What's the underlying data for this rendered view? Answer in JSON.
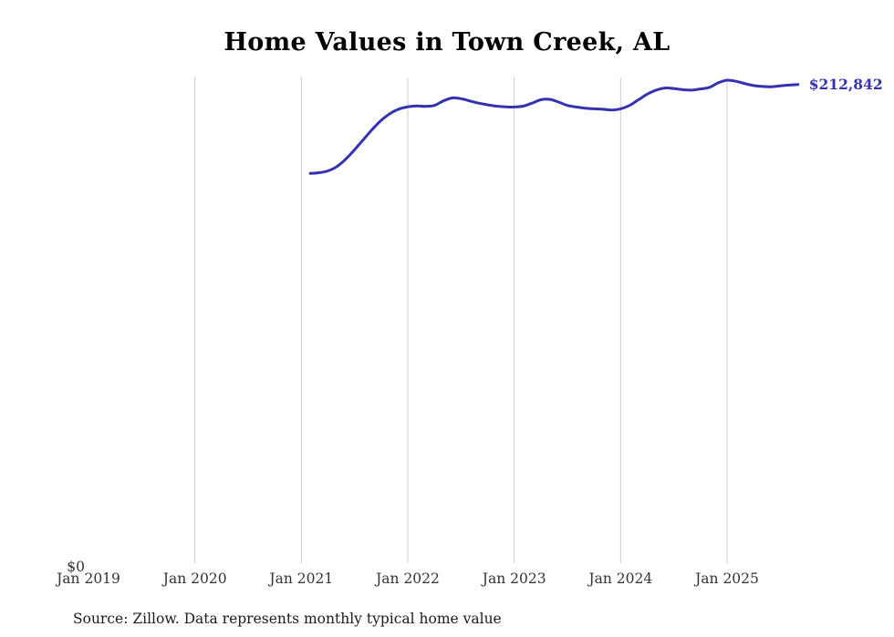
{
  "page": {
    "source_note": "Source: Zillow. Data represents monthly typical home value"
  },
  "chart_data": {
    "type": "line",
    "title": "Home Values in Town Creek, AL",
    "xlabel": "",
    "ylabel": "",
    "x_tick_labels": [
      "Jan 2019",
      "Jan 2020",
      "Jan 2021",
      "Jan 2022",
      "Jan 2023",
      "Jan 2024",
      "Jan 2025"
    ],
    "y_tick_labels": [
      "$0"
    ],
    "ylim": [
      0,
      216000
    ],
    "grid": "vertical",
    "legend": "none",
    "line_color": "#3432b0",
    "grid_color": "#cccccc",
    "tick_color": "#333333",
    "end_label": "$212,842",
    "end_value": 212842,
    "series": [
      {
        "name": "Monthly typical home value",
        "x": [
          "2021-02",
          "2021-03",
          "2021-04",
          "2021-05",
          "2021-06",
          "2021-07",
          "2021-08",
          "2021-09",
          "2021-10",
          "2021-11",
          "2021-12",
          "2022-01",
          "2022-02",
          "2022-03",
          "2022-04",
          "2022-05",
          "2022-06",
          "2022-07",
          "2022-08",
          "2022-09",
          "2022-10",
          "2022-11",
          "2022-12",
          "2023-01",
          "2023-02",
          "2023-03",
          "2023-04",
          "2023-05",
          "2023-06",
          "2023-07",
          "2023-08",
          "2023-09",
          "2023-10",
          "2023-11",
          "2023-12",
          "2024-01",
          "2024-02",
          "2024-03",
          "2024-04",
          "2024-05",
          "2024-06",
          "2024-07",
          "2024-08",
          "2024-09",
          "2024-10",
          "2024-11",
          "2024-12",
          "2025-01",
          "2025-02",
          "2025-03",
          "2025-04",
          "2025-05",
          "2025-06",
          "2025-07",
          "2025-08",
          "2025-09"
        ],
        "values": [
          173500,
          173800,
          174600,
          176500,
          179800,
          184000,
          188500,
          193000,
          197000,
          200000,
          202000,
          203000,
          203400,
          203200,
          203600,
          205600,
          206900,
          206600,
          205600,
          204600,
          203900,
          203300,
          203000,
          202900,
          203300,
          204600,
          206100,
          206300,
          205100,
          203600,
          202900,
          202400,
          202100,
          201900,
          201600,
          202100,
          203600,
          206100,
          208600,
          210400,
          211300,
          211100,
          210600,
          210400,
          210900,
          211600,
          213600,
          214800,
          214300,
          213300,
          212400,
          212000,
          211900,
          212300,
          212600,
          212842
        ]
      }
    ]
  }
}
